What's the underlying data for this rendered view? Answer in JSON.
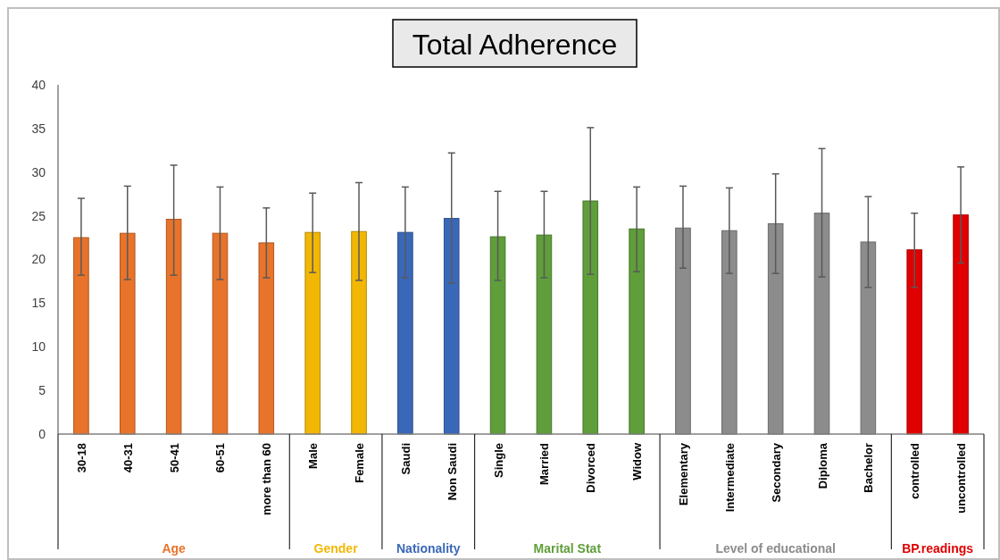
{
  "chart_data": {
    "type": "bar",
    "title": "Total Adherence",
    "categories": [
      "30-18",
      "40-31",
      "50-41",
      "60-51",
      "more than 60",
      "Male",
      "Female",
      "Saudi",
      "Non Saudi",
      "Single",
      "Married",
      "Divorced",
      "Widow",
      "Elementary",
      "Intermediate",
      "Secondary",
      "Diploma",
      "Bachelor",
      "controlled",
      "uncontrolled"
    ],
    "series": [
      {
        "name": "Age",
        "color": "#e8732a",
        "values": [
          22.5,
          23.0,
          24.6,
          23.0,
          21.9,
          null,
          null,
          null,
          null,
          null,
          null,
          null,
          null,
          null,
          null,
          null,
          null,
          null,
          null,
          null
        ],
        "errors": [
          [
            18.2,
            27.0
          ],
          [
            17.7,
            28.4
          ],
          [
            18.2,
            30.8
          ],
          [
            17.7,
            28.3
          ],
          [
            17.9,
            25.9
          ],
          null,
          null,
          null,
          null,
          null,
          null,
          null,
          null,
          null,
          null,
          null,
          null,
          null,
          null,
          null
        ]
      },
      {
        "name": "Gender",
        "color": "#f2b705",
        "values": [
          null,
          null,
          null,
          null,
          null,
          23.1,
          23.2,
          null,
          null,
          null,
          null,
          null,
          null,
          null,
          null,
          null,
          null,
          null,
          null,
          null
        ],
        "errors": [
          null,
          null,
          null,
          null,
          null,
          [
            18.5,
            27.6
          ],
          [
            17.6,
            28.8
          ],
          null,
          null,
          null,
          null,
          null,
          null,
          null,
          null,
          null,
          null,
          null,
          null,
          null
        ]
      },
      {
        "name": "Nationality",
        "color": "#3a68b8",
        "values": [
          null,
          null,
          null,
          null,
          null,
          null,
          null,
          23.1,
          24.7,
          null,
          null,
          null,
          null,
          null,
          null,
          null,
          null,
          null,
          null,
          null
        ],
        "errors": [
          null,
          null,
          null,
          null,
          null,
          null,
          null,
          [
            17.9,
            28.3
          ],
          [
            17.3,
            32.2
          ],
          null,
          null,
          null,
          null,
          null,
          null,
          null,
          null,
          null,
          null,
          null
        ]
      },
      {
        "name": "Marital Stat",
        "color": "#5f9e3a",
        "values": [
          null,
          null,
          null,
          null,
          null,
          null,
          null,
          null,
          null,
          22.6,
          22.8,
          26.7,
          23.5,
          null,
          null,
          null,
          null,
          null,
          null,
          null
        ],
        "errors": [
          null,
          null,
          null,
          null,
          null,
          null,
          null,
          null,
          null,
          [
            17.6,
            27.8
          ],
          [
            17.9,
            27.8
          ],
          [
            18.3,
            35.1
          ],
          [
            18.6,
            28.3
          ],
          null,
          null,
          null,
          null,
          null,
          null,
          null
        ]
      },
      {
        "name": "Level of educational",
        "color": "#8c8c8c",
        "values": [
          null,
          null,
          null,
          null,
          null,
          null,
          null,
          null,
          null,
          null,
          null,
          null,
          null,
          23.6,
          23.3,
          24.1,
          25.3,
          22.0,
          null,
          null
        ],
        "errors": [
          null,
          null,
          null,
          null,
          null,
          null,
          null,
          null,
          null,
          null,
          null,
          null,
          null,
          [
            19.0,
            28.4
          ],
          [
            18.4,
            28.2
          ],
          [
            18.4,
            29.8
          ],
          [
            18.0,
            32.7
          ],
          [
            16.8,
            27.2
          ],
          null,
          null
        ]
      },
      {
        "name": "BP.readings",
        "color": "#e00000",
        "values": [
          null,
          null,
          null,
          null,
          null,
          null,
          null,
          null,
          null,
          null,
          null,
          null,
          null,
          null,
          null,
          null,
          null,
          null,
          21.1,
          25.1
        ],
        "errors": [
          null,
          null,
          null,
          null,
          null,
          null,
          null,
          null,
          null,
          null,
          null,
          null,
          null,
          null,
          null,
          null,
          null,
          null,
          [
            16.8,
            25.3
          ],
          [
            19.6,
            30.6
          ]
        ]
      }
    ],
    "ylim": [
      0,
      40
    ],
    "yticks": [
      0,
      5,
      10,
      15,
      20,
      25,
      30,
      35,
      40
    ],
    "grid": false
  }
}
